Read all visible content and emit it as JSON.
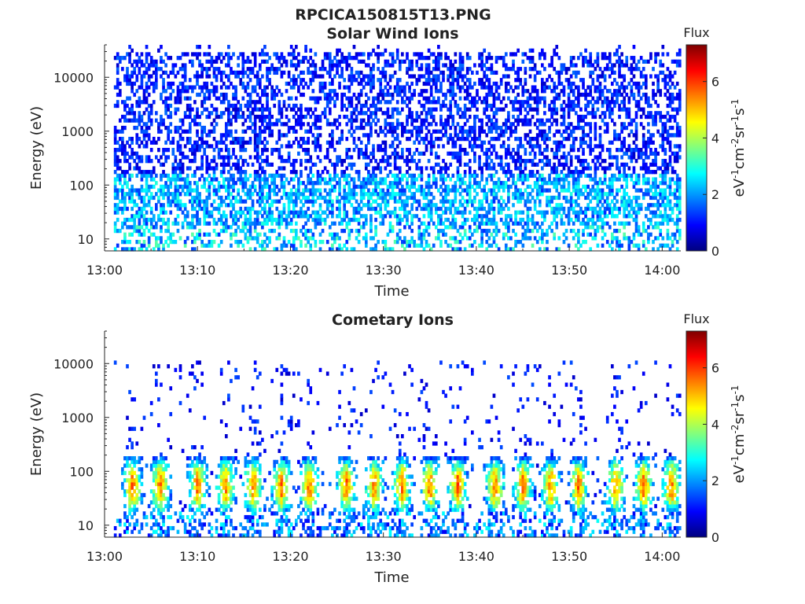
{
  "figure_title": "RPCICA150815T13.PNG",
  "chart_data": [
    {
      "type": "heatmap",
      "title": "Solar Wind Ions",
      "xlabel": "Time",
      "ylabel": "Energy (eV)",
      "yscale": "log",
      "ylim": [
        6,
        40000
      ],
      "xlim": [
        "13:00",
        "14:02"
      ],
      "x_ticks": [
        "13:00",
        "13:10",
        "13:20",
        "13:30",
        "13:40",
        "13:50",
        "14:00"
      ],
      "y_ticks": [
        "10",
        "100",
        "1000",
        "10000"
      ],
      "colorbar": {
        "label": "Flux",
        "unit": "eV-1cm-2sr-1s-1",
        "range": [
          0,
          7.3
        ],
        "ticks": [
          "0",
          "2",
          "4",
          "6"
        ],
        "colormap": "jet"
      },
      "data_time_range": [
        "13:01",
        "14:02"
      ],
      "description_of_pattern": "sparse low flux (≈0.5–1.5) across all energies, moderate flux (≈2–3) below 100 eV"
    },
    {
      "type": "heatmap",
      "title": "Cometary Ions",
      "xlabel": "Time",
      "ylabel": "Energy (eV)",
      "yscale": "log",
      "ylim": [
        6,
        40000
      ],
      "xlim": [
        "13:00",
        "14:02"
      ],
      "x_ticks": [
        "13:00",
        "13:10",
        "13:20",
        "13:30",
        "13:40",
        "13:50",
        "14:00"
      ],
      "y_ticks": [
        "10",
        "100",
        "1000",
        "10000"
      ],
      "colorbar": {
        "label": "Flux",
        "unit": "eV-1cm-2sr-1s-1",
        "range": [
          0,
          7.3
        ],
        "ticks": [
          "0",
          "2",
          "4",
          "6"
        ],
        "colormap": "jet"
      },
      "data_time_range": [
        "13:01",
        "14:02"
      ],
      "burst_times": [
        "13:03",
        "13:06",
        "13:10",
        "13:13",
        "13:16",
        "13:19",
        "13:22",
        "13:26",
        "13:29",
        "13:32",
        "13:35",
        "13:38",
        "13:42",
        "13:45",
        "13:48",
        "13:51",
        "13:55",
        "13:58",
        "14:01"
      ],
      "burst_center_energy_ev": 50,
      "burst_peak_flux": 5.8
    }
  ]
}
